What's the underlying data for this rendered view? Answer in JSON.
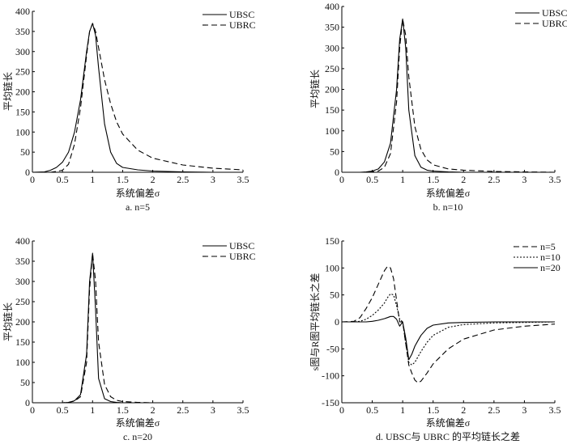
{
  "chart_data": [
    {
      "type": "line",
      "caption": "a. n=5",
      "xlabel": "系统偏差σ",
      "ylabel": "平均链长",
      "xlim": [
        0,
        3.5
      ],
      "ylim": [
        0,
        400
      ],
      "xticks": [
        0,
        0.5,
        1,
        1.5,
        2,
        2.5,
        3,
        3.5
      ],
      "yticks": [
        0,
        50,
        100,
        150,
        200,
        250,
        300,
        350,
        400
      ],
      "legend_position": "top-right",
      "x": [
        0,
        0.2,
        0.3,
        0.4,
        0.5,
        0.6,
        0.7,
        0.8,
        0.9,
        0.95,
        1.0,
        1.05,
        1.1,
        1.2,
        1.3,
        1.4,
        1.5,
        1.75,
        2,
        2.5,
        3,
        3.5
      ],
      "series": [
        {
          "name": "UBSC",
          "style": "solid",
          "values": [
            0,
            1,
            5,
            12,
            25,
            50,
            100,
            180,
            300,
            350,
            370,
            340,
            260,
            120,
            50,
            22,
            12,
            6,
            3,
            1,
            0,
            0
          ]
        },
        {
          "name": "UBRC",
          "style": "dashed",
          "values": [
            0,
            0,
            0,
            2,
            5,
            20,
            70,
            160,
            290,
            350,
            370,
            350,
            310,
            230,
            170,
            125,
            95,
            55,
            35,
            18,
            10,
            6
          ]
        }
      ]
    },
    {
      "type": "line",
      "caption": "b. n=10",
      "xlabel": "系统偏差σ",
      "ylabel": "平均链长",
      "xlim": [
        0,
        3.5
      ],
      "ylim": [
        0,
        400
      ],
      "xticks": [
        0,
        0.5,
        1,
        1.5,
        2,
        2.5,
        3,
        3.5
      ],
      "yticks": [
        0,
        50,
        100,
        150,
        200,
        250,
        300,
        350,
        400
      ],
      "legend_position": "top-right",
      "x": [
        0,
        0.2,
        0.3,
        0.4,
        0.5,
        0.6,
        0.7,
        0.8,
        0.9,
        0.95,
        1.0,
        1.05,
        1.1,
        1.2,
        1.3,
        1.4,
        1.5,
        1.75,
        2,
        2.5,
        3,
        3.5
      ],
      "series": [
        {
          "name": "UBSC",
          "style": "solid",
          "values": [
            0,
            0,
            0,
            1,
            3,
            8,
            25,
            70,
            200,
            320,
            370,
            300,
            150,
            40,
            12,
            5,
            3,
            1,
            0,
            0,
            0,
            0
          ]
        },
        {
          "name": "UBRC",
          "style": "dashed",
          "values": [
            0,
            0,
            0,
            0,
            1,
            3,
            12,
            45,
            170,
            300,
            370,
            330,
            230,
            110,
            55,
            30,
            18,
            8,
            5,
            2,
            1,
            0
          ]
        }
      ]
    },
    {
      "type": "line",
      "caption": "c. n=20",
      "xlabel": "系统偏差σ",
      "ylabel": "平均链长",
      "xlim": [
        0,
        3.5
      ],
      "ylim": [
        0,
        400
      ],
      "xticks": [
        0,
        0.5,
        1,
        1.5,
        2,
        2.5,
        3,
        3.5
      ],
      "yticks": [
        0,
        50,
        100,
        150,
        200,
        250,
        300,
        350,
        400
      ],
      "legend_position": "top-right",
      "x": [
        0,
        0.2,
        0.3,
        0.4,
        0.5,
        0.6,
        0.7,
        0.8,
        0.9,
        0.95,
        1.0,
        1.05,
        1.1,
        1.2,
        1.3,
        1.4,
        1.5,
        1.75,
        2,
        2.5,
        3,
        3.5
      ],
      "series": [
        {
          "name": "UBSC",
          "style": "solid",
          "values": [
            0,
            0,
            0,
            0,
            0,
            1,
            5,
            20,
            120,
            300,
            370,
            230,
            60,
            10,
            3,
            1,
            0,
            0,
            0,
            0,
            0,
            0
          ]
        },
        {
          "name": "UBRC",
          "style": "dashed",
          "values": [
            0,
            0,
            0,
            0,
            0,
            1,
            4,
            15,
            100,
            280,
            370,
            300,
            150,
            45,
            15,
            6,
            3,
            1,
            0,
            0,
            0,
            0
          ]
        }
      ]
    },
    {
      "type": "line",
      "caption": "d. UBSC与 UBRC 的平均链长之差",
      "xlabel": "系统偏差σ",
      "ylabel": "s图与R图平均链长之差",
      "xlim": [
        0,
        3.5
      ],
      "ylim": [
        -150,
        150
      ],
      "xticks": [
        0,
        0.5,
        1,
        1.5,
        2,
        2.5,
        3,
        3.5
      ],
      "yticks": [
        -150,
        -100,
        -50,
        0,
        50,
        100,
        150
      ],
      "legend_position": "top-right",
      "x": [
        0,
        0.2,
        0.3,
        0.4,
        0.5,
        0.6,
        0.7,
        0.75,
        0.8,
        0.85,
        0.9,
        0.95,
        1.0,
        1.05,
        1.1,
        1.15,
        1.2,
        1.25,
        1.3,
        1.4,
        1.5,
        1.75,
        2,
        2.5,
        3,
        3.5
      ],
      "series": [
        {
          "name": "n=5",
          "style": "dashed",
          "values": [
            0,
            1,
            8,
            25,
            45,
            70,
            95,
            103,
            100,
            80,
            40,
            0,
            0,
            -40,
            -80,
            -95,
            -108,
            -113,
            -110,
            -95,
            -78,
            -50,
            -32,
            -15,
            -8,
            -4
          ]
        },
        {
          "name": "n=10",
          "style": "dotted",
          "values": [
            0,
            0,
            1,
            5,
            12,
            22,
            35,
            45,
            52,
            50,
            30,
            5,
            0,
            -40,
            -75,
            -80,
            -75,
            -65,
            -55,
            -38,
            -25,
            -10,
            -5,
            -2,
            -1,
            0
          ]
        },
        {
          "name": "n=20",
          "style": "solid",
          "values": [
            0,
            0,
            0,
            0,
            1,
            3,
            6,
            8,
            10,
            10,
            5,
            -8,
            0,
            -30,
            -70,
            -60,
            -45,
            -35,
            -25,
            -12,
            -6,
            -2,
            -1,
            0,
            0,
            0
          ]
        }
      ]
    }
  ]
}
